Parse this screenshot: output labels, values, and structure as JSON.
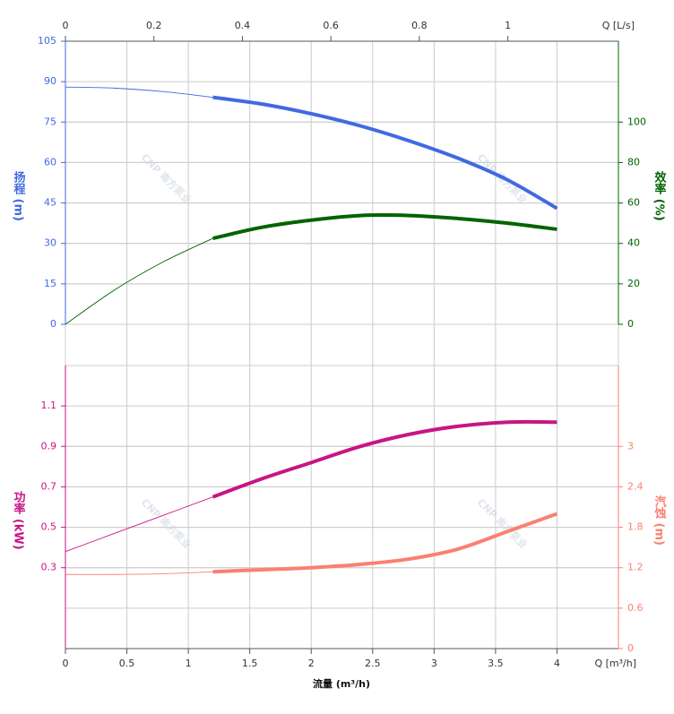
{
  "watermark": "CNP 南方泵业",
  "chart_data": [
    {
      "type": "line",
      "x": [
        0,
        0.4,
        0.8,
        1.2,
        1.6,
        2,
        2.4,
        2.8,
        3.2,
        3.6,
        4
      ],
      "xlim": [
        0,
        4.5
      ],
      "x2label": "Q [L/s]",
      "x2lim": [
        0,
        1.25
      ],
      "x2ticks": [
        0,
        0.2,
        0.4,
        0.6,
        0.8,
        1
      ],
      "ylabel": "扬程 (m)",
      "ylim": [
        0,
        105
      ],
      "yticks": [
        0,
        15,
        30,
        45,
        60,
        75,
        90,
        105
      ],
      "ycolor": "#4169e1",
      "y2label": "效率 (%)",
      "y2lim": [
        0,
        140
      ],
      "y2ticks": [
        0,
        20,
        40,
        60,
        80,
        100
      ],
      "y2color": "#006400",
      "operating_range": [
        1.2,
        4
      ],
      "grid": true,
      "series": [
        {
          "color": "#4169e1",
          "axis": "y",
          "values": [
            88,
            87.6,
            86.3,
            84.2,
            81.7,
            78.1,
            73.6,
            68,
            61.5,
            53.5,
            43
          ]
        },
        {
          "color": "#006400",
          "axis": "y2",
          "values": [
            0,
            17,
            31,
            42.5,
            48,
            51.5,
            53.8,
            53.8,
            52.3,
            50,
            47
          ]
        }
      ]
    },
    {
      "type": "line",
      "x": [
        0,
        0.4,
        0.8,
        1.2,
        1.6,
        2,
        2.4,
        2.8,
        3.2,
        3.6,
        4
      ],
      "xlabel": "流量 (m³/h)",
      "xunit": "Q [m³/h]",
      "xlim": [
        0,
        4.5
      ],
      "xticks": [
        0,
        0.5,
        1,
        1.5,
        2,
        2.5,
        3,
        3.5,
        4
      ],
      "ylabel": "功率 (kW)",
      "ylim": [
        -0.1,
        1.3
      ],
      "yticks": [
        0.3,
        0.5,
        0.7,
        0.9,
        1.1
      ],
      "ycolor": "#c71585",
      "y2label": "汽蚀 (m)",
      "y2lim": [
        0,
        4.2
      ],
      "y2ticks": [
        0,
        0.6,
        1.2,
        1.8,
        2.4,
        3
      ],
      "y2color": "#fa8072",
      "operating_range": [
        1.2,
        4
      ],
      "grid": true,
      "series": [
        {
          "color": "#c71585",
          "axis": "y",
          "values": [
            0.38,
            0.47,
            0.56,
            0.65,
            0.74,
            0.82,
            0.9,
            0.96,
            1.0,
            1.02,
            1.02
          ]
        },
        {
          "color": "#fa8072",
          "axis": "y2",
          "values": [
            1.1,
            1.1,
            1.11,
            1.14,
            1.17,
            1.2,
            1.25,
            1.33,
            1.48,
            1.74,
            2.0
          ]
        }
      ]
    }
  ]
}
